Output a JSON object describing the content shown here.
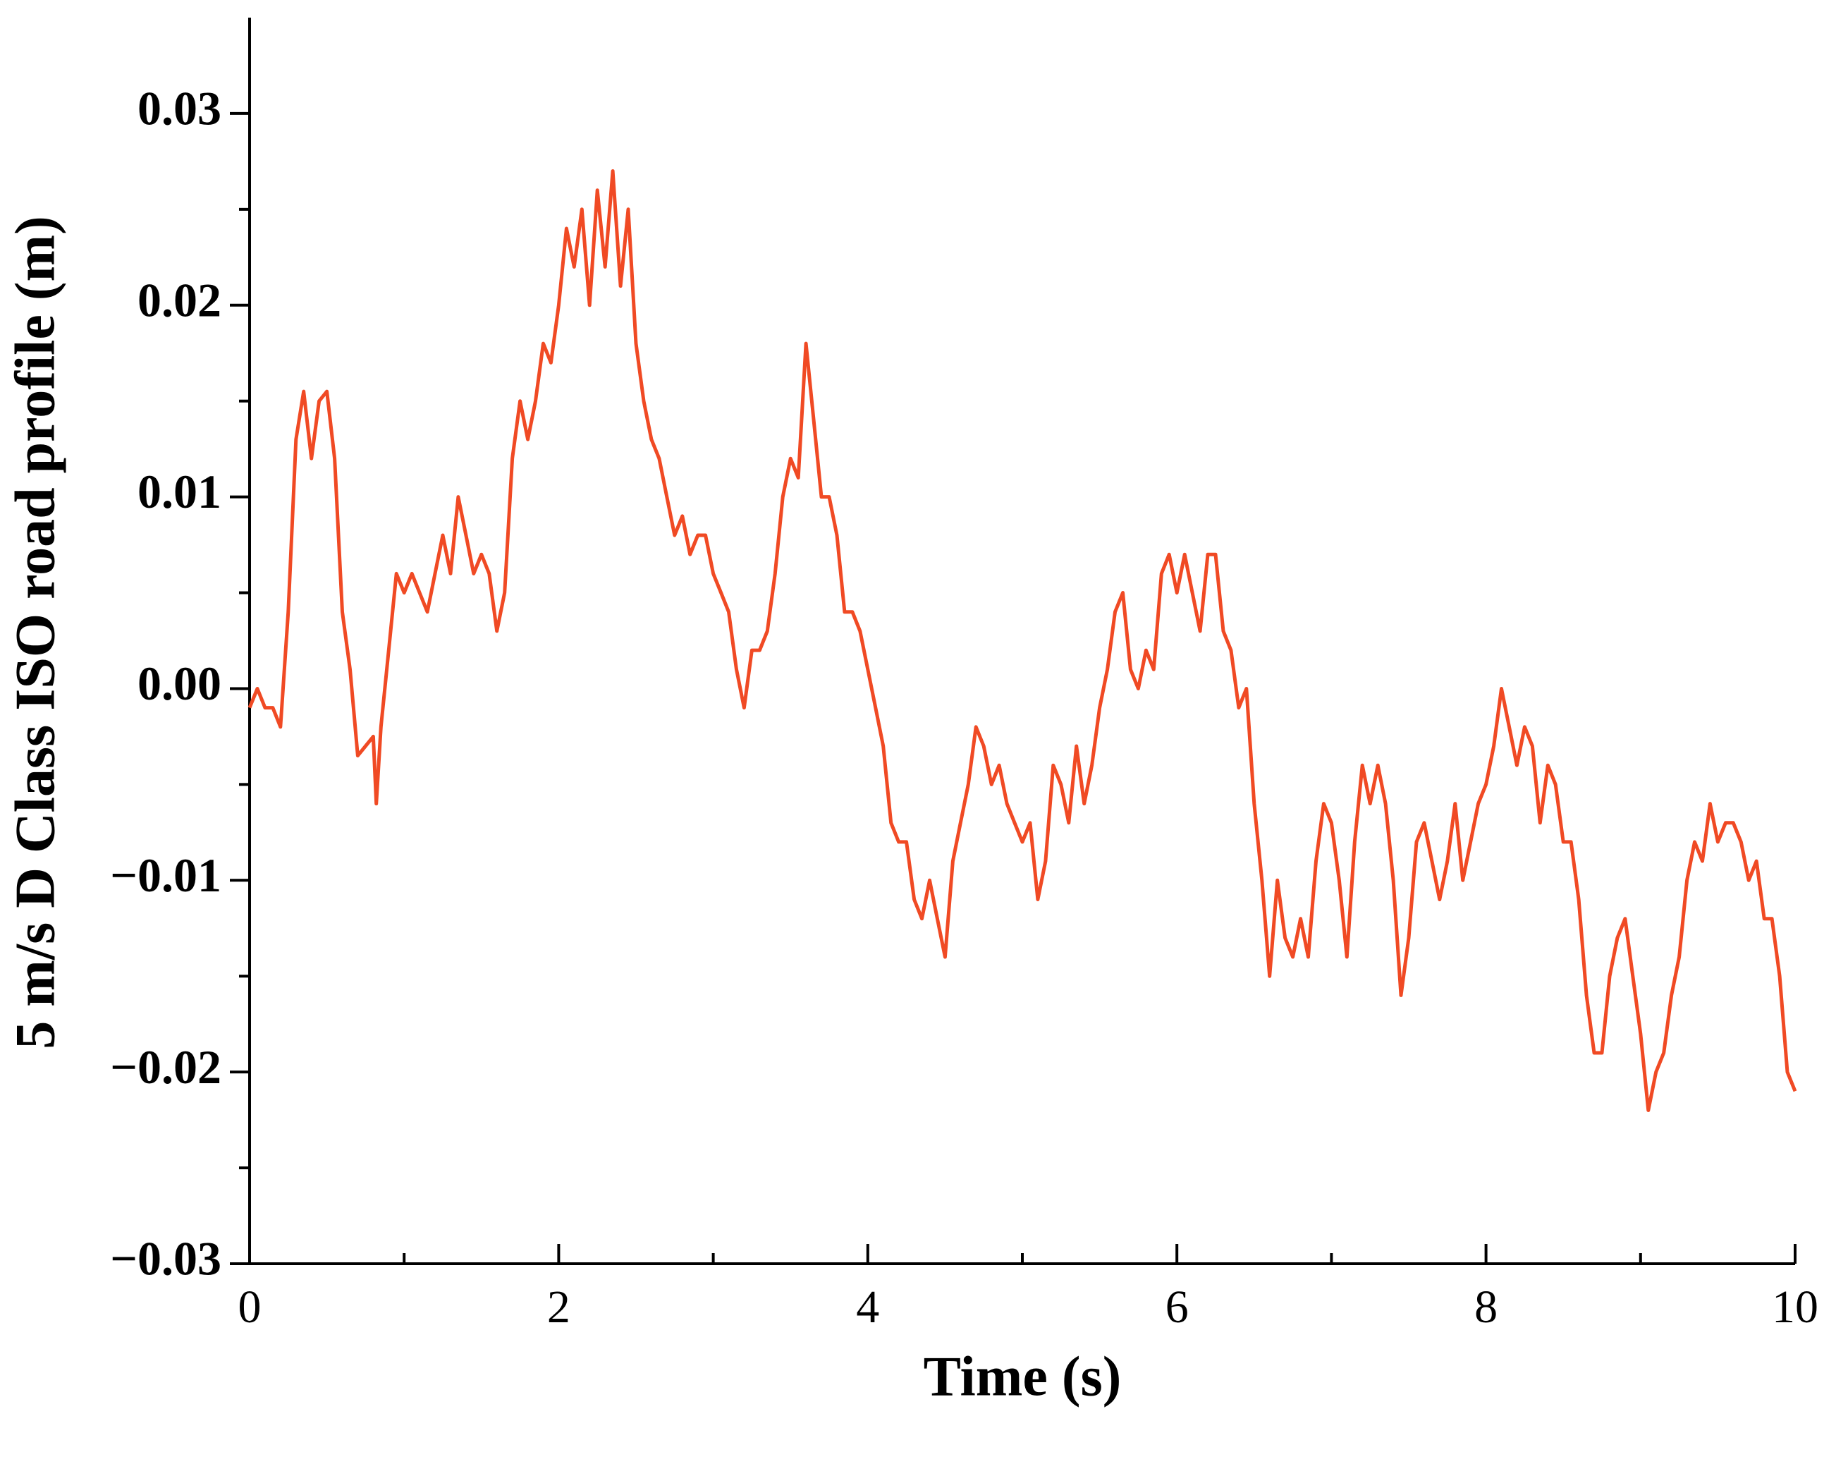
{
  "chart_data": {
    "type": "line",
    "xlabel": "Time (s)",
    "ylabel": "5 m/s D Class ISO road profile (m)",
    "xlim": [
      0,
      10
    ],
    "ylim": [
      -0.03,
      0.035
    ],
    "xticks": [
      0,
      2,
      4,
      6,
      8,
      10
    ],
    "xminorticks": [
      1,
      3,
      5,
      7,
      9
    ],
    "yticks": [
      {
        "value": -0.03,
        "label": "−0.03"
      },
      {
        "value": -0.02,
        "label": "−0.02"
      },
      {
        "value": -0.01,
        "label": "−0.01"
      },
      {
        "value": 0,
        "label": "0.00"
      },
      0.01,
      0.02,
      0.03
    ],
    "yminorticks": [
      -0.025,
      -0.015,
      -0.005,
      0.005,
      0.015,
      0.025
    ],
    "series": [
      {
        "color": "#f04a24",
        "x": [
          0,
          0.05,
          0.1,
          0.15,
          0.2,
          0.25,
          0.3,
          0.35,
          0.4,
          0.45,
          0.5,
          0.55,
          0.6,
          0.65,
          0.7,
          0.75,
          0.8,
          0.82,
          0.85,
          0.9,
          0.95,
          1,
          1.05,
          1.1,
          1.15,
          1.2,
          1.25,
          1.3,
          1.35,
          1.4,
          1.45,
          1.5,
          1.55,
          1.6,
          1.65,
          1.7,
          1.75,
          1.8,
          1.85,
          1.9,
          1.95,
          2,
          2.05,
          2.1,
          2.15,
          2.2,
          2.25,
          2.3,
          2.35,
          2.4,
          2.45,
          2.5,
          2.55,
          2.6,
          2.65,
          2.7,
          2.75,
          2.8,
          2.85,
          2.9,
          2.95,
          3,
          3.05,
          3.1,
          3.15,
          3.2,
          3.25,
          3.3,
          3.35,
          3.4,
          3.45,
          3.5,
          3.55,
          3.6,
          3.65,
          3.7,
          3.75,
          3.8,
          3.85,
          3.9,
          3.95,
          4,
          4.05,
          4.1,
          4.15,
          4.2,
          4.25,
          4.3,
          4.35,
          4.4,
          4.45,
          4.5,
          4.55,
          4.6,
          4.65,
          4.7,
          4.75,
          4.8,
          4.85,
          4.9,
          4.95,
          5,
          5.05,
          5.1,
          5.15,
          5.2,
          5.25,
          5.3,
          5.35,
          5.4,
          5.45,
          5.5,
          5.55,
          5.6,
          5.65,
          5.7,
          5.75,
          5.8,
          5.85,
          5.9,
          5.95,
          6,
          6.05,
          6.1,
          6.15,
          6.2,
          6.25,
          6.3,
          6.35,
          6.4,
          6.45,
          6.5,
          6.55,
          6.6,
          6.65,
          6.7,
          6.75,
          6.8,
          6.85,
          6.9,
          6.95,
          7,
          7.05,
          7.1,
          7.15,
          7.2,
          7.25,
          7.3,
          7.35,
          7.4,
          7.45,
          7.5,
          7.55,
          7.6,
          7.65,
          7.7,
          7.75,
          7.8,
          7.85,
          7.9,
          7.95,
          8,
          8.05,
          8.1,
          8.15,
          8.2,
          8.25,
          8.3,
          8.35,
          8.4,
          8.45,
          8.5,
          8.55,
          8.6,
          8.65,
          8.7,
          8.75,
          8.8,
          8.85,
          8.9,
          8.95,
          9,
          9.05,
          9.1,
          9.15,
          9.2,
          9.25,
          9.3,
          9.35,
          9.4,
          9.45,
          9.5,
          9.55,
          9.6,
          9.65,
          9.7,
          9.75,
          9.8,
          9.85,
          9.9,
          9.95,
          10
        ],
        "values": [
          -0.001,
          0,
          -0.001,
          -0.001,
          -0.002,
          0.004,
          0.013,
          0.0155,
          0.012,
          0.015,
          0.0155,
          0.012,
          0.004,
          0.001,
          -0.0035,
          -0.003,
          -0.0025,
          -0.006,
          -0.002,
          0.002,
          0.006,
          0.005,
          0.006,
          0.005,
          0.004,
          0.006,
          0.008,
          0.006,
          0.01,
          0.008,
          0.006,
          0.007,
          0.006,
          0.003,
          0.005,
          0.012,
          0.015,
          0.013,
          0.015,
          0.018,
          0.017,
          0.02,
          0.024,
          0.022,
          0.025,
          0.02,
          0.026,
          0.022,
          0.027,
          0.021,
          0.025,
          0.018,
          0.015,
          0.013,
          0.012,
          0.01,
          0.008,
          0.009,
          0.007,
          0.008,
          0.008,
          0.006,
          0.005,
          0.004,
          0.001,
          -0.001,
          0.002,
          0.002,
          0.003,
          0.006,
          0.01,
          0.012,
          0.011,
          0.018,
          0.014,
          0.01,
          0.01,
          0.008,
          0.004,
          0.004,
          0.003,
          0.001,
          -0.001,
          -0.003,
          -0.007,
          -0.008,
          -0.008,
          -0.011,
          -0.012,
          -0.01,
          -0.012,
          -0.014,
          -0.009,
          -0.007,
          -0.005,
          -0.002,
          -0.003,
          -0.005,
          -0.004,
          -0.006,
          -0.007,
          -0.008,
          -0.007,
          -0.011,
          -0.009,
          -0.004,
          -0.005,
          -0.007,
          -0.003,
          -0.006,
          -0.004,
          -0.001,
          0.001,
          0.004,
          0.005,
          0.001,
          0,
          0.002,
          0.001,
          0.006,
          0.007,
          0.005,
          0.007,
          0.005,
          0.003,
          0.007,
          0.007,
          0.003,
          0.002,
          -0.001,
          0,
          -0.006,
          -0.01,
          -0.015,
          -0.01,
          -0.013,
          -0.014,
          -0.012,
          -0.014,
          -0.009,
          -0.006,
          -0.007,
          -0.01,
          -0.014,
          -0.008,
          -0.004,
          -0.006,
          -0.004,
          -0.006,
          -0.01,
          -0.016,
          -0.013,
          -0.008,
          -0.007,
          -0.009,
          -0.011,
          -0.009,
          -0.006,
          -0.01,
          -0.008,
          -0.006,
          -0.005,
          -0.003,
          0,
          -0.002,
          -0.004,
          -0.002,
          -0.003,
          -0.007,
          -0.004,
          -0.005,
          -0.008,
          -0.008,
          -0.011,
          -0.016,
          -0.019,
          -0.019,
          -0.015,
          -0.013,
          -0.012,
          -0.015,
          -0.018,
          -0.022,
          -0.02,
          -0.019,
          -0.016,
          -0.014,
          -0.01,
          -0.008,
          -0.009,
          -0.006,
          -0.008,
          -0.007,
          -0.007,
          -0.008,
          -0.01,
          -0.009,
          -0.012,
          -0.012,
          -0.015,
          -0.02,
          -0.021
        ]
      }
    ]
  }
}
